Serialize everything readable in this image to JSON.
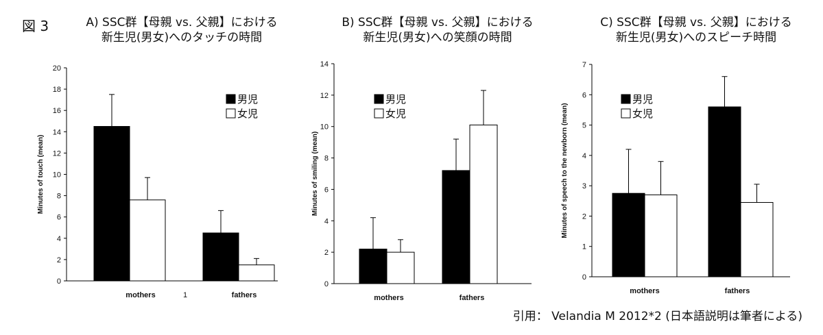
{
  "figure_label": "図 3",
  "citation": "引用： Velandia M 2012*2 (日本語説明は筆者による)",
  "colors": {
    "boys": "#000000",
    "girls": "#ffffff",
    "stroke": "#000000"
  },
  "chart_data": [
    {
      "type": "bar",
      "title": [
        "A) SSC群【母親 vs. 父親】における",
        "新生児(男女)へのタッチの時間"
      ],
      "ylabel": "Minutes of touch (mean)",
      "ylim": [
        0,
        20
      ],
      "yticks": [
        0,
        2,
        4,
        6,
        8,
        10,
        12,
        14,
        16,
        18,
        20
      ],
      "categories": [
        "mothers",
        "fathers"
      ],
      "extra_label": "1",
      "series": [
        {
          "name": "男児",
          "values": [
            14.5,
            4.5
          ],
          "err": [
            3.0,
            2.1
          ]
        },
        {
          "name": "女児",
          "values": [
            7.6,
            1.5
          ],
          "err": [
            2.1,
            0.6
          ]
        }
      ],
      "legend": "top-right"
    },
    {
      "type": "bar",
      "title": [
        "B) SSC群【母親 vs. 父親】における",
        "新生児(男女)への笑顔の時間"
      ],
      "ylabel": "Minutes of smiling (mean)",
      "ylim": [
        0,
        14
      ],
      "yticks": [
        0,
        2,
        4,
        6,
        8,
        10,
        12,
        14
      ],
      "categories": [
        "mothers",
        "fathers"
      ],
      "series": [
        {
          "name": "男児",
          "values": [
            2.2,
            7.2
          ],
          "err": [
            2.0,
            2.0
          ]
        },
        {
          "name": "女児",
          "values": [
            2.0,
            10.1
          ],
          "err": [
            0.8,
            2.2
          ]
        }
      ],
      "legend": "top-left"
    },
    {
      "type": "bar",
      "title": [
        "C) SSC群【母親 vs. 父親】における",
        "新生児(男女)へのスピーチ時間"
      ],
      "ylabel": "Minutes of speech to the newborn (mean)",
      "ylim": [
        0,
        7
      ],
      "yticks": [
        0,
        1,
        2,
        3,
        4,
        5,
        6,
        7
      ],
      "categories": [
        "mothers",
        "fathers"
      ],
      "series": [
        {
          "name": "男児",
          "values": [
            2.75,
            5.6
          ],
          "err": [
            1.45,
            1.0
          ]
        },
        {
          "name": "女児",
          "values": [
            2.7,
            2.45
          ],
          "err": [
            1.1,
            0.6
          ]
        }
      ],
      "legend": "top-left"
    }
  ]
}
